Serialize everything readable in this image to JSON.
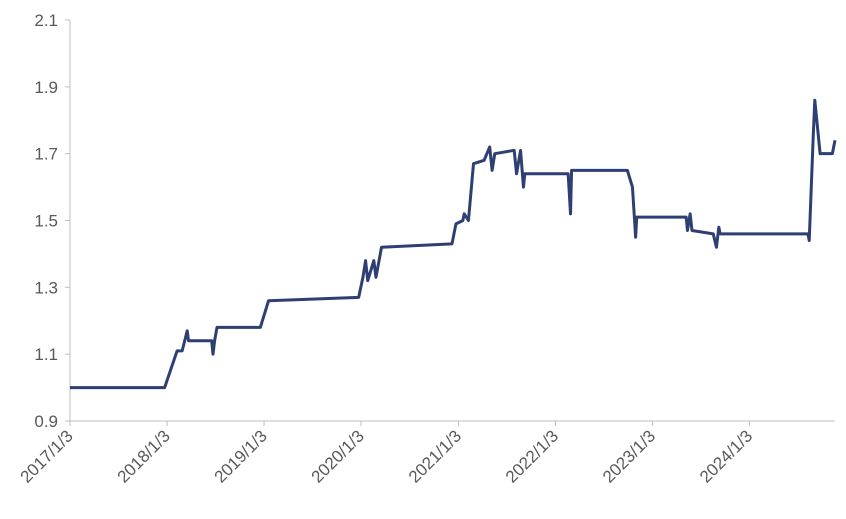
{
  "chart_data": {
    "type": "line",
    "x": [
      "2017/1/3",
      "2017/12/25",
      "2018/2/10",
      "2018/3/1",
      "2018/3/20",
      "2018/3/25",
      "2018/6/20",
      "2018/6/25",
      "2018/7/1",
      "2018/7/10",
      "2018/12/20",
      "2019/1/20",
      "2019/12/25",
      "2020/1/10",
      "2020/1/20",
      "2020/1/28",
      "2020/2/20",
      "2020/2/28",
      "2020/3/20",
      "2020/12/10",
      "2020/12/25",
      "2021/1/20",
      "2021/1/25",
      "2021/2/10",
      "2021/3/1",
      "2021/4/10",
      "2021/5/1",
      "2021/5/10",
      "2021/5/20",
      "2021/8/1",
      "2021/8/10",
      "2021/8/25",
      "2021/9/5",
      "2021/9/10",
      "2022/2/20",
      "2022/3/1",
      "2022/3/5",
      "2022/10/1",
      "2022/10/20",
      "2022/11/1",
      "2022/11/5",
      "2023/5/10",
      "2023/5/15",
      "2023/5/25",
      "2023/6/1",
      "2023/8/20",
      "2023/9/1",
      "2023/9/10",
      "2023/9/15",
      "2024/8/10",
      "2024/8/15",
      "2024/8/30",
      "2024/9/5",
      "2024/9/15",
      "2024/9/25",
      "2024/11/10",
      "2024/11/20"
    ],
    "series": [
      {
        "color": "#2e3f73",
        "values": [
          1.0,
          1.0,
          1.11,
          1.11,
          1.17,
          1.14,
          1.14,
          1.1,
          1.14,
          1.18,
          1.18,
          1.26,
          1.27,
          1.33,
          1.38,
          1.32,
          1.38,
          1.33,
          1.42,
          1.43,
          1.49,
          1.5,
          1.52,
          1.5,
          1.67,
          1.68,
          1.72,
          1.65,
          1.7,
          1.71,
          1.64,
          1.71,
          1.6,
          1.64,
          1.64,
          1.52,
          1.65,
          1.65,
          1.6,
          1.45,
          1.51,
          1.51,
          1.47,
          1.52,
          1.47,
          1.46,
          1.42,
          1.48,
          1.46,
          1.46,
          1.44,
          1.75,
          1.86,
          1.78,
          1.7,
          1.7,
          1.74
        ]
      }
    ],
    "xlim": [
      "2017/1/3",
      "2024/11/20"
    ],
    "xticks": [
      "2017/1/3",
      "2018/1/3",
      "2019/1/3",
      "2020/1/3",
      "2021/1/3",
      "2022/1/3",
      "2023/1/3",
      "2024/1/3"
    ],
    "ylim": [
      0.9,
      2.1
    ],
    "yticks": [
      0.9,
      1.1,
      1.3,
      1.5,
      1.7,
      1.9,
      2.1
    ]
  }
}
